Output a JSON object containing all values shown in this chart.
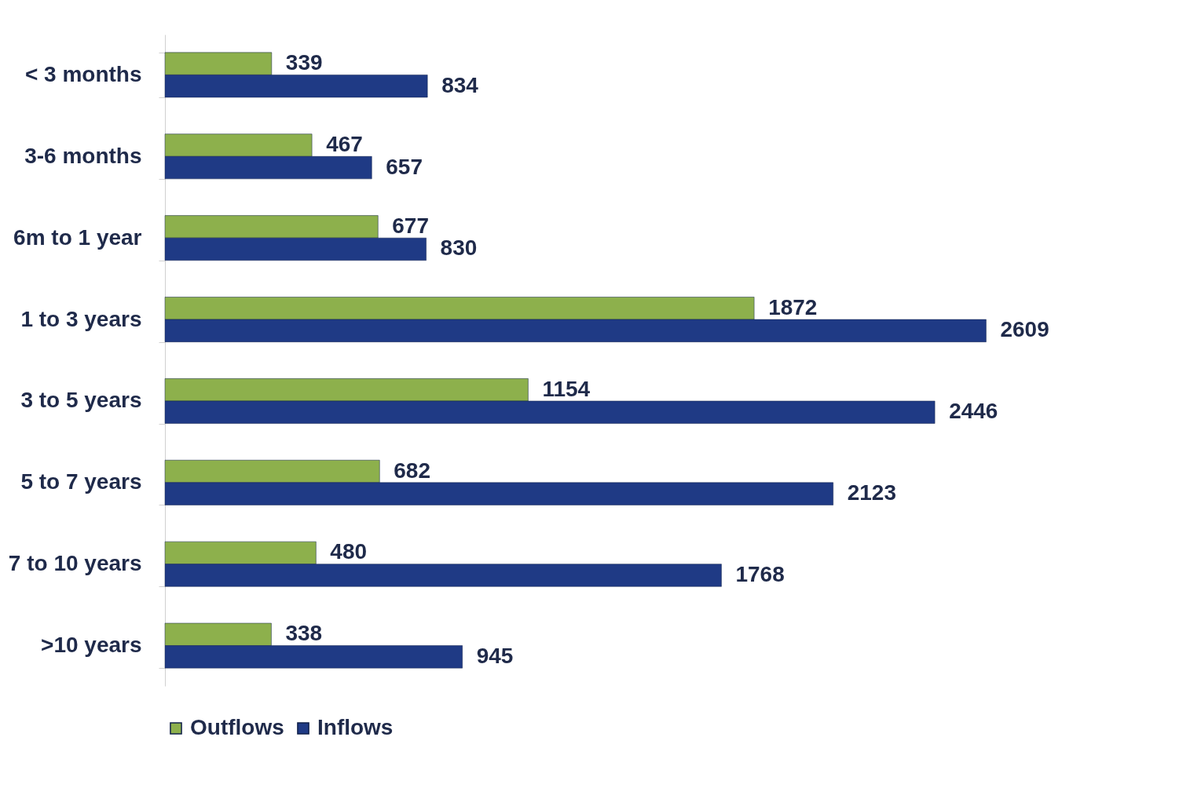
{
  "chart_data": {
    "type": "bar",
    "orientation": "horizontal",
    "categories": [
      "< 3 months",
      "3-6 months",
      "6m to 1 year",
      "1 to 3 years",
      "3 to 5 years",
      "5 to 7 years",
      "7 to 10 years",
      ">10 years"
    ],
    "series": [
      {
        "name": "Outflows",
        "color": "#8db04c",
        "values": [
          339,
          467,
          677,
          1872,
          1154,
          682,
          480,
          338
        ]
      },
      {
        "name": "Inflows",
        "color": "#1f3a85",
        "values": [
          834,
          657,
          830,
          2609,
          2446,
          2123,
          1768,
          945
        ]
      }
    ],
    "data_labels": true,
    "legend": "bottom",
    "grid": false
  }
}
